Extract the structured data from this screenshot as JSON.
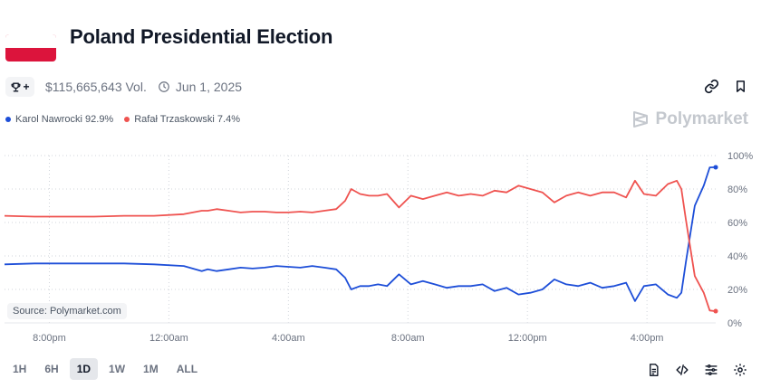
{
  "market": {
    "title": "Poland Presidential Election",
    "volume": "$115,665,643 Vol.",
    "date": "Jun 1, 2025",
    "trophy_plus": "+",
    "flag_colors": [
      "#ffffff",
      "#dc143c"
    ]
  },
  "brand": {
    "name": "Polymarket"
  },
  "source_label": "Source: Polymarket.com",
  "timeframes": [
    {
      "label": "1H",
      "active": false
    },
    {
      "label": "6H",
      "active": false
    },
    {
      "label": "1D",
      "active": true
    },
    {
      "label": "1W",
      "active": false
    },
    {
      "label": "1M",
      "active": false
    },
    {
      "label": "ALL",
      "active": false
    }
  ],
  "colors": {
    "nawrocki": "#1d4ed8",
    "trzaskowski": "#ef5350",
    "grid": "#d1d5db",
    "axis_text": "#6b7280"
  },
  "chart_data": {
    "type": "line",
    "title": "Poland Presidential Election",
    "ylabel": "",
    "xlabel": "",
    "ylim": [
      0,
      100
    ],
    "yticks": [
      0,
      20,
      40,
      60,
      80,
      100
    ],
    "ytick_labels": [
      "0%",
      "20%",
      "40%",
      "60%",
      "80%",
      "100%"
    ],
    "x_start_hours": 18.5,
    "x_end_hours": 42.3,
    "xtick_hours": [
      20,
      24,
      28,
      32,
      36,
      40
    ],
    "xtick_labels": [
      "8:00pm",
      "12:00am",
      "4:00am",
      "8:00am",
      "12:00pm",
      "4:00pm"
    ],
    "legend_position": "top-left",
    "series": [
      {
        "name": "Karol Nawrocki",
        "legend": "Karol Nawrocki 92.9%",
        "color": "#1d4ed8",
        "x": [
          18.5,
          19.5,
          20.5,
          21.5,
          22.5,
          23.5,
          24.5,
          25.1,
          25.3,
          25.6,
          26.0,
          26.4,
          26.8,
          27.2,
          27.6,
          28.0,
          28.4,
          28.8,
          29.2,
          29.6,
          29.9,
          30.1,
          30.4,
          30.7,
          31.0,
          31.3,
          31.7,
          32.1,
          32.5,
          32.9,
          33.3,
          33.7,
          34.1,
          34.5,
          34.9,
          35.3,
          35.7,
          36.1,
          36.5,
          36.9,
          37.3,
          37.7,
          38.1,
          38.5,
          38.9,
          39.3,
          39.6,
          39.9,
          40.3,
          40.7,
          41.0,
          41.15,
          41.3,
          41.6,
          41.9,
          42.1,
          42.3
        ],
        "y": [
          35,
          35.5,
          35.5,
          35.5,
          35.5,
          35,
          34,
          31,
          32,
          31,
          32,
          33,
          32.5,
          33,
          34,
          33.5,
          33,
          34,
          33,
          32,
          27,
          20,
          22,
          22,
          23,
          22,
          29,
          23,
          25,
          23,
          21,
          22,
          22,
          23,
          19,
          21,
          17,
          18,
          20,
          26,
          23,
          22,
          24,
          21,
          22,
          24,
          13,
          22,
          23,
          17,
          15,
          18,
          36,
          70,
          82,
          92.9,
          93
        ]
      },
      {
        "name": "Rafał Trzaskowski",
        "legend": "Rafał Trzaskowski 7.4%",
        "color": "#ef5350",
        "x": [
          18.5,
          19.5,
          20.5,
          21.5,
          22.5,
          23.5,
          24.5,
          25.1,
          25.3,
          25.6,
          26.0,
          26.4,
          26.8,
          27.2,
          27.6,
          28.0,
          28.4,
          28.8,
          29.2,
          29.6,
          29.9,
          30.1,
          30.4,
          30.7,
          31.0,
          31.3,
          31.7,
          32.1,
          32.5,
          32.9,
          33.3,
          33.7,
          34.1,
          34.5,
          34.9,
          35.3,
          35.7,
          36.1,
          36.5,
          36.9,
          37.3,
          37.7,
          38.1,
          38.5,
          38.9,
          39.3,
          39.6,
          39.9,
          40.3,
          40.7,
          41.0,
          41.15,
          41.3,
          41.6,
          41.9,
          42.1,
          42.3
        ],
        "y": [
          64,
          63.5,
          63.5,
          63.5,
          64,
          64,
          65,
          67,
          67,
          68,
          67,
          66,
          66.5,
          66.5,
          66,
          66,
          66.5,
          66,
          67,
          68,
          73,
          80,
          77,
          76,
          76,
          77,
          69,
          76,
          74,
          76,
          78,
          76,
          77,
          76,
          79,
          78,
          82,
          80,
          78,
          72,
          76,
          78,
          76,
          78,
          78,
          75,
          85,
          77,
          76,
          83,
          85,
          80,
          62,
          28,
          18,
          7.4,
          7
        ]
      }
    ]
  }
}
